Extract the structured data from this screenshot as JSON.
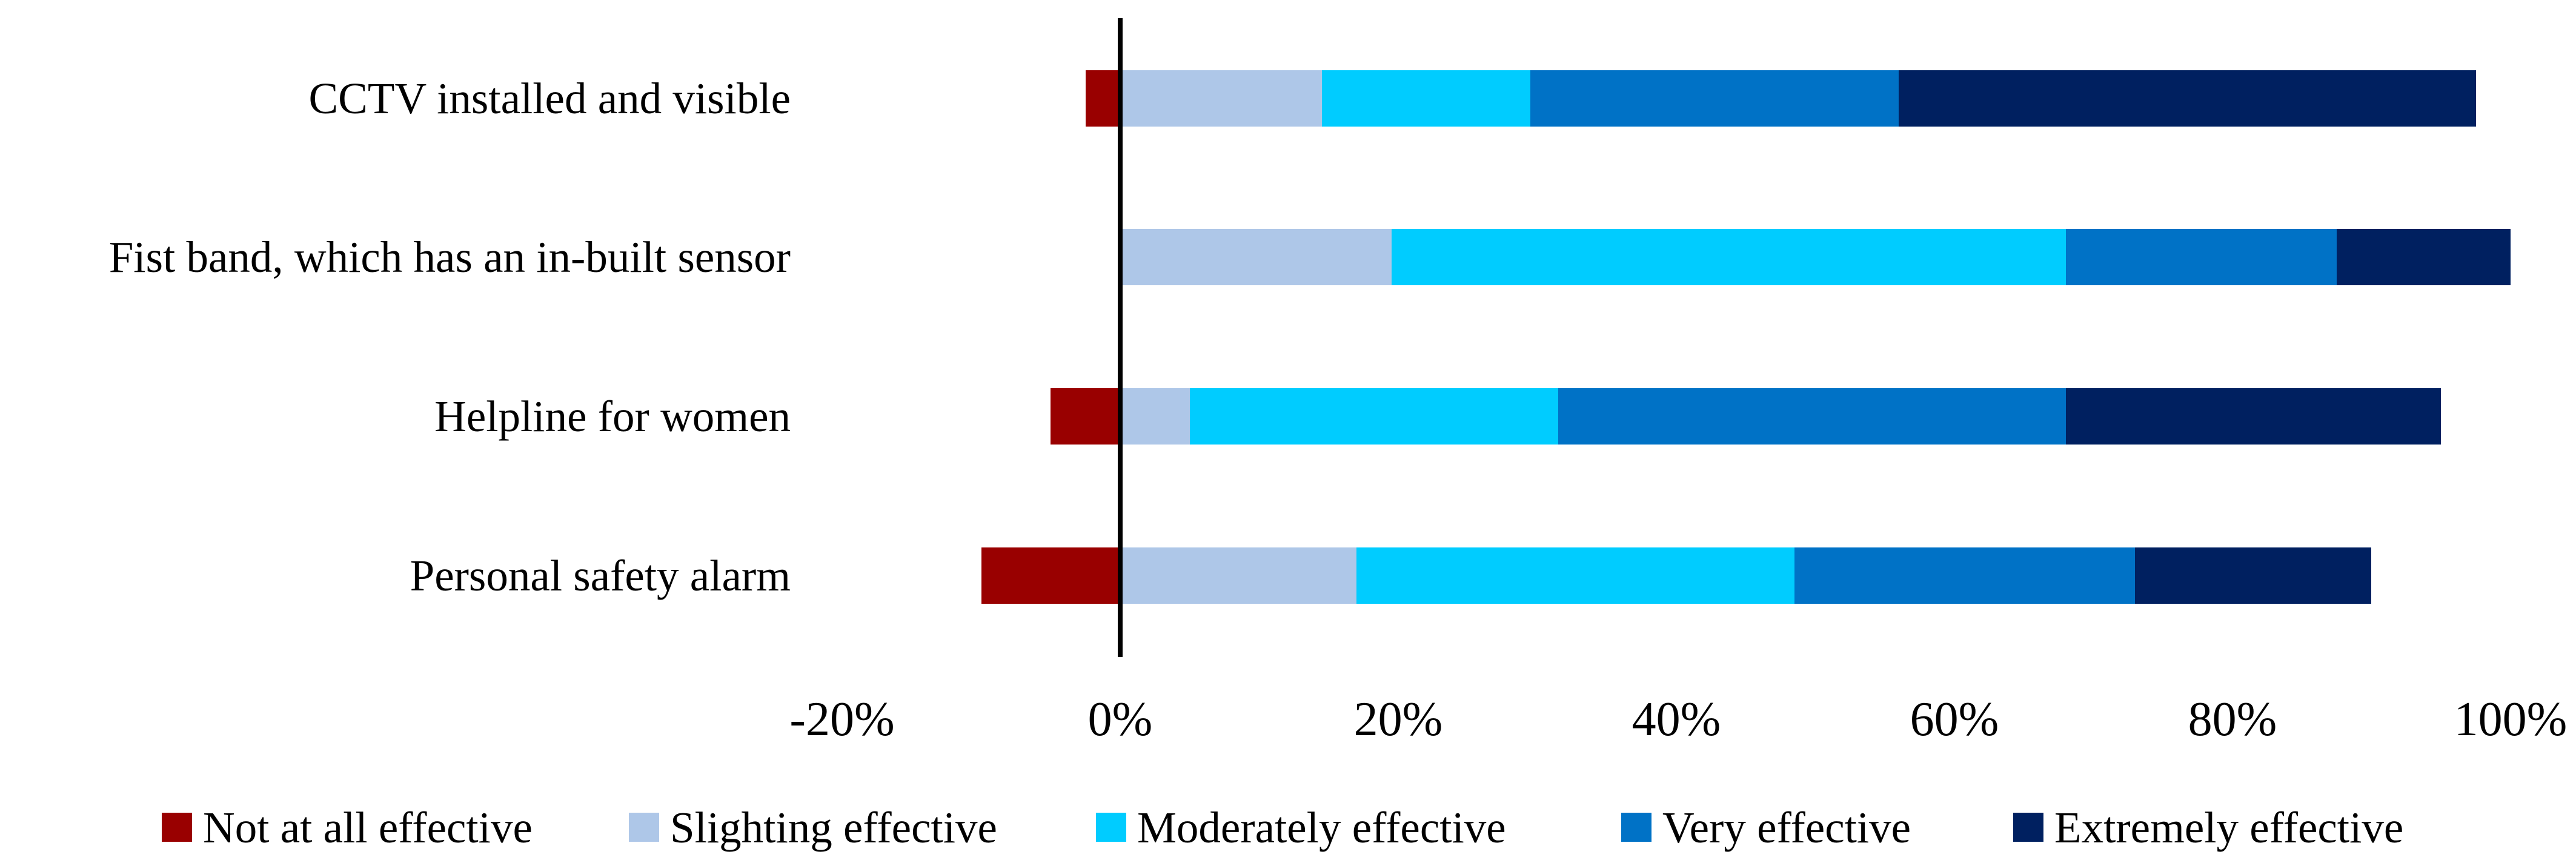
{
  "chart_data": {
    "type": "bar",
    "variant": "horizontal-diverging-stacked",
    "title": "",
    "xlabel": "",
    "ylabel": "",
    "categories": [
      "CCTV installed and visible",
      "Fist band, which has an in-built sensor",
      "Helpline for women",
      "Personal safety alarm"
    ],
    "series": [
      {
        "name": "Not at all effective",
        "color": "#990000",
        "values": [
          -2.5,
          0,
          -5,
          -10
        ]
      },
      {
        "name": "Slighting effective",
        "color": "#AEC7E8",
        "values": [
          14.5,
          19.5,
          5,
          17
        ]
      },
      {
        "name": "Moderately effective",
        "color": "#00CCFF",
        "values": [
          15,
          48.5,
          26.5,
          31.5
        ]
      },
      {
        "name": "Very effective",
        "color": "#0072C6",
        "values": [
          26.5,
          19.5,
          36.5,
          24.5
        ]
      },
      {
        "name": "Extremely effective",
        "color": "#002060",
        "values": [
          41.5,
          12.5,
          27,
          17
        ]
      }
    ],
    "x_axis": {
      "tick_labels": [
        "-20%",
        "0%",
        "20%",
        "40%",
        "60%",
        "80%",
        "100%"
      ],
      "tick_values": [
        -20,
        0,
        20,
        40,
        60,
        80,
        100
      ],
      "range": [
        -20,
        100
      ],
      "grid": false,
      "zero_baseline_shown": true
    },
    "legend": {
      "position": "bottom"
    }
  }
}
